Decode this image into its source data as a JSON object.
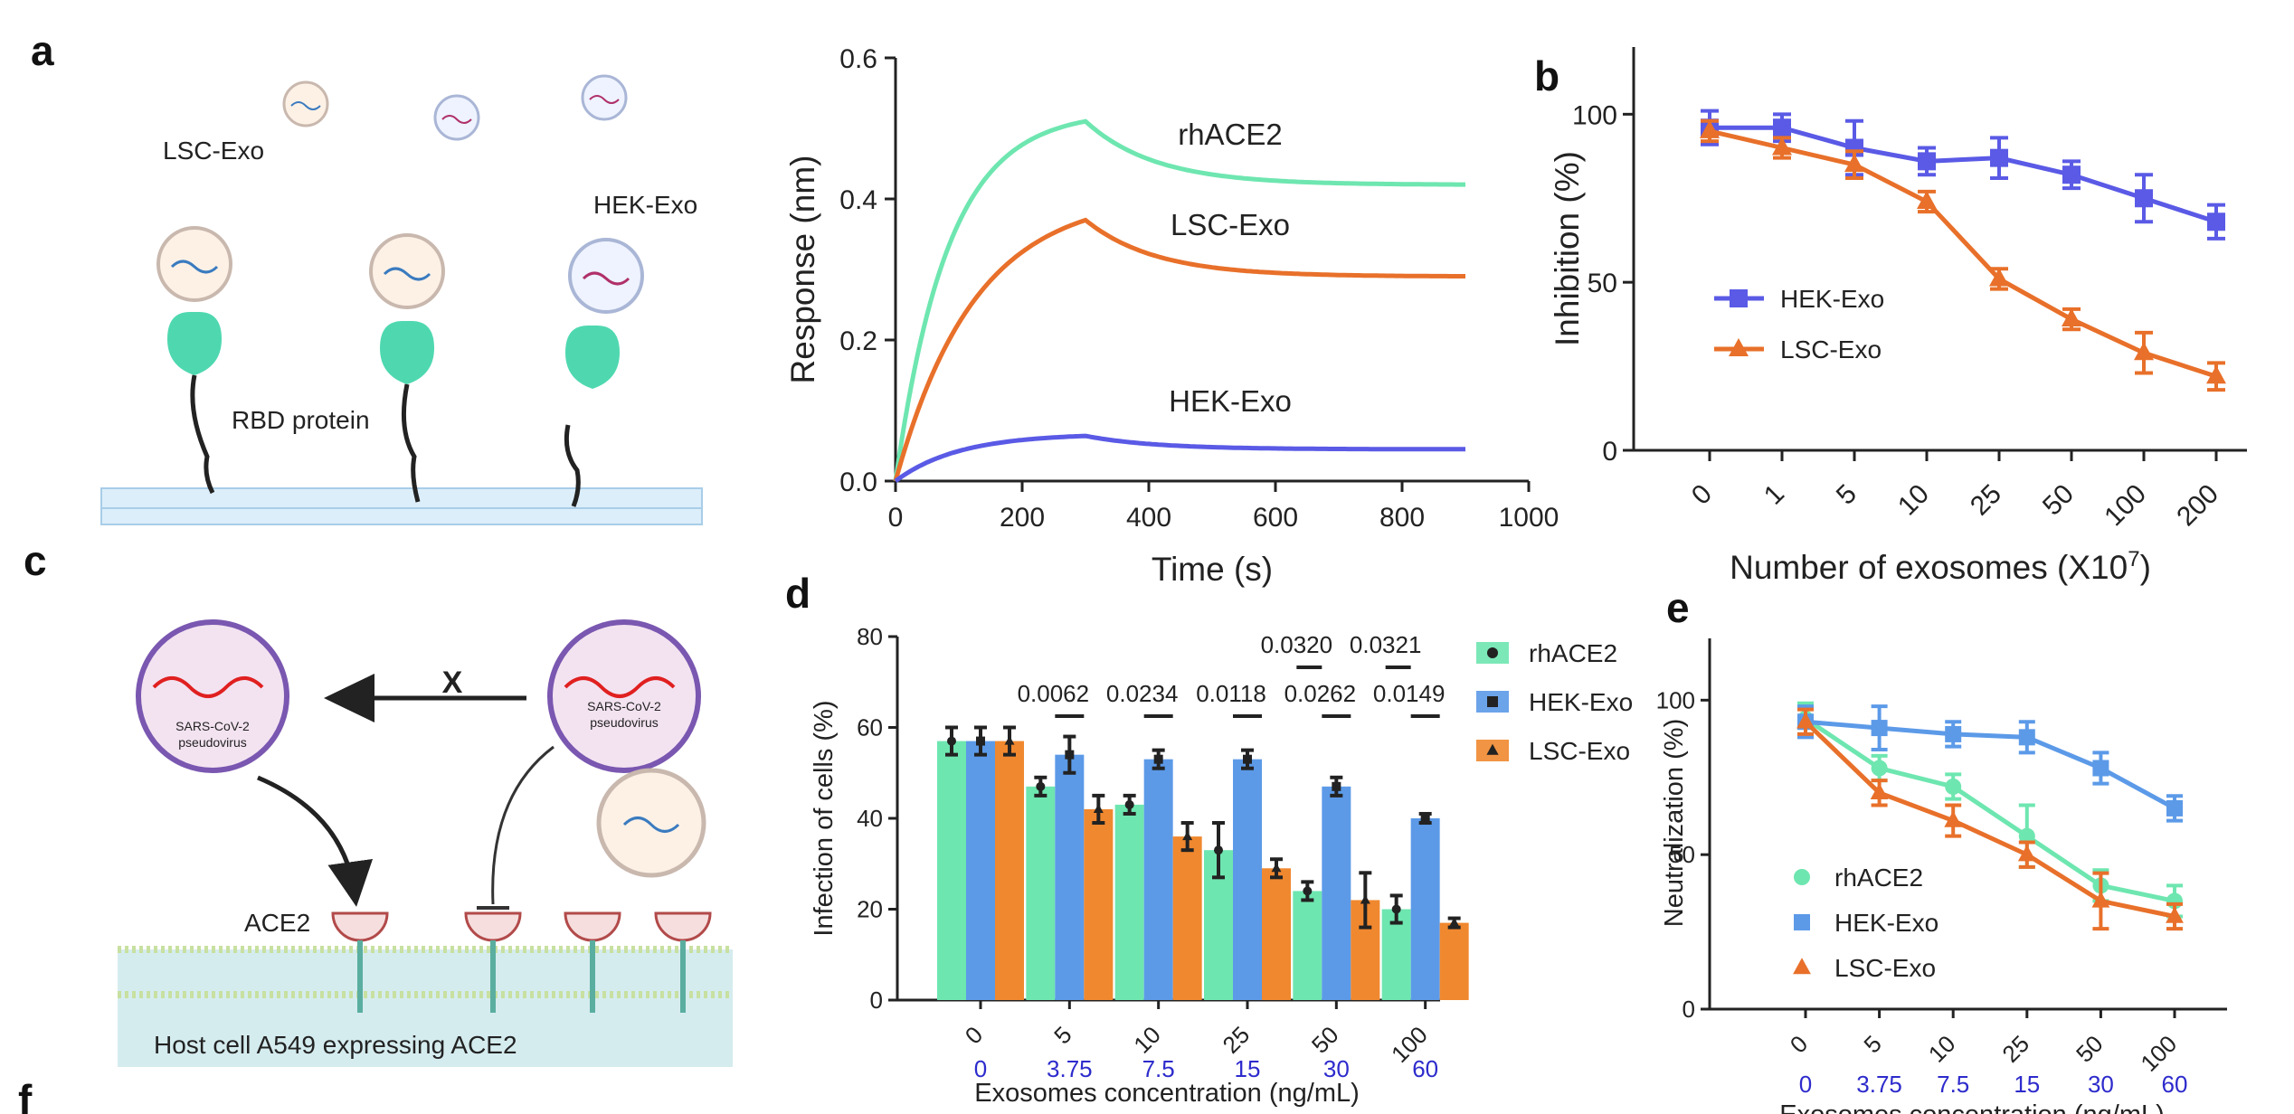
{
  "panel_labels": {
    "a": "a",
    "b": "b",
    "c": "c",
    "d": "d",
    "e": "e",
    "f": "f"
  },
  "schematic_a": {
    "lsc_exo": "LSC-Exo",
    "hek_exo": "HEK-Exo",
    "rbd_protein": "RBD protein"
  },
  "schematic_c": {
    "virus_text_line1": "SARS-CoV-2",
    "virus_text_line2": "pseudovirus",
    "x_mark": "X",
    "ace2": "ACE2",
    "host_cell": "Host cell A549 expressing ACE2"
  },
  "colors": {
    "rhACE2": "#6ee6b0",
    "HEK": "#5a5ae6",
    "HEK_d": "#5c9ae8",
    "LSC": "#e8702a",
    "LSC_d": "#f0882f",
    "blue_num": "#2d2bcc"
  },
  "chart_data": [
    {
      "id": "bli",
      "type": "line",
      "xlabel": "Time (s)",
      "ylabel": "Response (nm)",
      "xlim": [
        0,
        1000
      ],
      "ylim": [
        0,
        0.6
      ],
      "xticks": [
        "0",
        "200",
        "400",
        "600",
        "800",
        "1000"
      ],
      "yticks": [
        "0.0",
        "0.2",
        "0.4",
        "0.6"
      ],
      "series": [
        {
          "name": "rhACE2",
          "label": "rhACE2",
          "peak": 0.51,
          "k_on": 0.012,
          "plateau": 0.42
        },
        {
          "name": "LSC-Exo",
          "label": "LSC-Exo",
          "peak": 0.37,
          "k_on": 0.008,
          "plateau": 0.29
        },
        {
          "name": "HEK-Exo",
          "label": "HEK-Exo",
          "peak": 0.064,
          "k_on": 0.01,
          "plateau": 0.045
        }
      ],
      "association_end": 300,
      "dissociation_end": 900
    },
    {
      "id": "b",
      "type": "line",
      "xlabel_main": "Number of exosomes (X10",
      "xlabel_sup": "7",
      "xlabel_end": ")",
      "ylabel": "Inhibition (%)",
      "ylim": [
        0,
        120
      ],
      "yticks": [
        "0",
        "50",
        "100"
      ],
      "categories": [
        "0",
        "1",
        "5",
        "10",
        "25",
        "50",
        "100",
        "200"
      ],
      "series": [
        {
          "name": "HEK-Exo",
          "values": [
            96,
            96,
            90,
            86,
            87,
            82,
            75,
            68
          ],
          "errors": [
            5,
            4,
            8,
            4,
            6,
            4,
            7,
            5
          ]
        },
        {
          "name": "LSC-Exo",
          "values": [
            95,
            90,
            85,
            74,
            51,
            39,
            29,
            22
          ],
          "errors": [
            3,
            3,
            4,
            3,
            3,
            3,
            6,
            4
          ]
        }
      ]
    },
    {
      "id": "d",
      "type": "bar",
      "ylabel": "Infection of cells (%)",
      "xlabel": "Exosomes concentration (ng/mL)",
      "ylim": [
        0,
        80
      ],
      "yticks": [
        "0",
        "20",
        "40",
        "60",
        "80"
      ],
      "categories": [
        "0",
        "5",
        "10",
        "25",
        "50",
        "100"
      ],
      "categories2": [
        "0",
        "3.75",
        "7.5",
        "15",
        "30",
        "60"
      ],
      "series": [
        {
          "name": "rhACE2",
          "values": [
            57,
            47,
            43,
            33,
            24,
            20
          ],
          "errors": [
            3,
            2,
            2,
            6,
            2,
            3
          ]
        },
        {
          "name": "HEK-Exo",
          "values": [
            57,
            54,
            53,
            53,
            47,
            40
          ],
          "errors": [
            3,
            4,
            2,
            2,
            2,
            1
          ]
        },
        {
          "name": "LSC-Exo",
          "values": [
            57,
            42,
            36,
            29,
            22,
            17
          ],
          "errors": [
            3,
            3,
            3,
            2,
            6,
            1
          ]
        }
      ],
      "pvalues": [
        {
          "category_index": 1,
          "lower": "0.0062",
          "upper": ""
        },
        {
          "category_index": 2,
          "lower": "0.0234",
          "upper": ""
        },
        {
          "category_index": 3,
          "lower": "0.0118",
          "upper": ""
        },
        {
          "category_index": 4,
          "lower": "0.0262",
          "upper": "0.0320"
        },
        {
          "category_index": 5,
          "lower": "0.0149",
          "upper": "0.0321"
        }
      ]
    },
    {
      "id": "e",
      "type": "line",
      "ylabel": "Neutralization (%)",
      "xlabel": "Exosomes concentration (ng/mL)",
      "ylim": [
        0,
        120
      ],
      "yticks": [
        "0",
        "50",
        "100"
      ],
      "categories": [
        "0",
        "5",
        "10",
        "25",
        "50",
        "100"
      ],
      "categories2": [
        "0",
        "3.75",
        "7.5",
        "15",
        "30",
        "60"
      ],
      "series": [
        {
          "name": "rhACE2",
          "values": [
            94,
            78,
            72,
            56,
            40,
            35
          ],
          "errors": [
            5,
            4,
            4,
            10,
            5,
            5
          ]
        },
        {
          "name": "HEK-Exo",
          "values": [
            93,
            91,
            89,
            88,
            78,
            65
          ],
          "errors": [
            5,
            7,
            4,
            5,
            5,
            4
          ]
        },
        {
          "name": "LSC-Exo",
          "values": [
            93,
            70,
            61,
            50,
            35,
            30
          ],
          "errors": [
            4,
            4,
            5,
            4,
            9,
            4
          ]
        }
      ]
    }
  ]
}
